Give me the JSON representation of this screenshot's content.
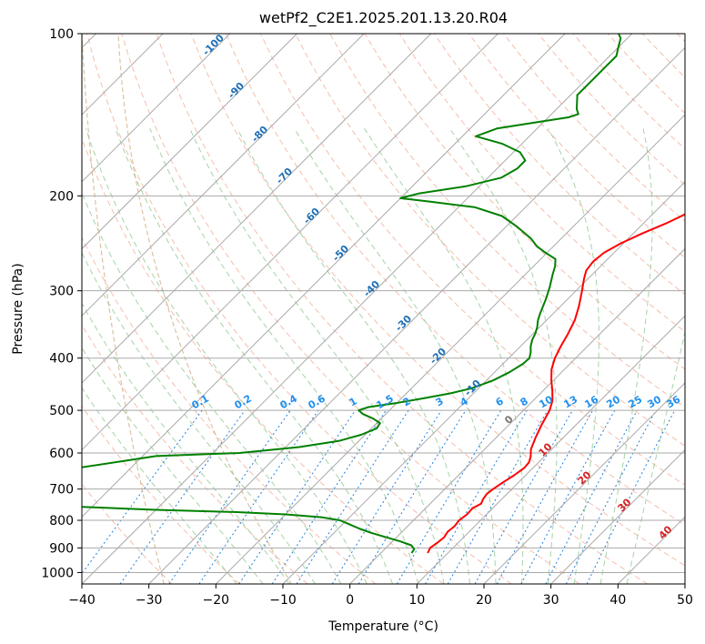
{
  "chart_data": {
    "type": "line",
    "title": "wetPf2_C2E1.2025.201.13.20.R04",
    "xlabel": "Temperature (°C)",
    "ylabel": "Pressure (hPa)",
    "xlim": [
      -40,
      50
    ],
    "ylim": [
      1050,
      100
    ],
    "y_scale": "log",
    "x_ticks": [
      -40,
      -30,
      -20,
      -10,
      0,
      10,
      20,
      30,
      40,
      50
    ],
    "y_ticks": [
      100,
      200,
      300,
      400,
      500,
      600,
      700,
      800,
      900,
      1000
    ],
    "grid": true,
    "series": [
      {
        "kind": "temperature",
        "color": "#ff0000",
        "points": [
          [
            920,
            7.0
          ],
          [
            900,
            6.6
          ],
          [
            880,
            6.9
          ],
          [
            860,
            7.1
          ],
          [
            840,
            6.8
          ],
          [
            820,
            7.0
          ],
          [
            800,
            6.8
          ],
          [
            780,
            7.1
          ],
          [
            760,
            7.0
          ],
          [
            745,
            7.6
          ],
          [
            730,
            7.2
          ],
          [
            715,
            7.0
          ],
          [
            700,
            7.2
          ],
          [
            680,
            7.7
          ],
          [
            660,
            8.3
          ],
          [
            640,
            8.7
          ],
          [
            625,
            8.6
          ],
          [
            610,
            8.0
          ],
          [
            590,
            6.9
          ],
          [
            560,
            5.8
          ],
          [
            530,
            4.8
          ],
          [
            500,
            3.9
          ],
          [
            480,
            2.9
          ],
          [
            460,
            1.4
          ],
          [
            440,
            -0.3
          ],
          [
            420,
            -1.9
          ],
          [
            400,
            -3.1
          ],
          [
            380,
            -4.0
          ],
          [
            360,
            -4.8
          ],
          [
            340,
            -5.8
          ],
          [
            320,
            -7.3
          ],
          [
            300,
            -9.1
          ],
          [
            285,
            -10.6
          ],
          [
            275,
            -11.5
          ],
          [
            265,
            -11.8
          ],
          [
            255,
            -11.5
          ],
          [
            245,
            -10.4
          ],
          [
            235,
            -8.7
          ],
          [
            225,
            -6.6
          ],
          [
            215,
            -4.9
          ],
          [
            205,
            -3.9
          ],
          [
            195,
            -3.5
          ],
          [
            185,
            -4.1
          ],
          [
            175,
            -5.0
          ],
          [
            165,
            -6.0
          ],
          [
            155,
            -7.3
          ],
          [
            145,
            -9.1
          ],
          [
            135,
            -11.4
          ],
          [
            125,
            -13.8
          ],
          [
            115,
            -16.3
          ],
          [
            108,
            -18.3
          ],
          [
            100,
            -20.9
          ]
        ]
      },
      {
        "kind": "dewpoint",
        "color": "#008000",
        "points": [
          [
            920,
            4.6
          ],
          [
            905,
            4.4
          ],
          [
            890,
            3.4
          ],
          [
            875,
            1.1
          ],
          [
            860,
            -1.6
          ],
          [
            845,
            -4.3
          ],
          [
            830,
            -6.7
          ],
          [
            815,
            -8.8
          ],
          [
            800,
            -11.0
          ],
          [
            790,
            -14.0
          ],
          [
            780,
            -20.0
          ],
          [
            772,
            -28.0
          ],
          [
            765,
            -40.0
          ],
          [
            755,
            -52.0
          ],
          [
            640,
            -58.0
          ],
          [
            608,
            -48.0
          ],
          [
            600,
            -36.0
          ],
          [
            585,
            -28.0
          ],
          [
            570,
            -23.0
          ],
          [
            555,
            -20.6
          ],
          [
            540,
            -19.2
          ],
          [
            528,
            -19.5
          ],
          [
            518,
            -21.2
          ],
          [
            508,
            -23.4
          ],
          [
            500,
            -24.6
          ],
          [
            493,
            -23.6
          ],
          [
            485,
            -20.2
          ],
          [
            475,
            -16.7
          ],
          [
            465,
            -13.4
          ],
          [
            455,
            -11.0
          ],
          [
            440,
            -9.0
          ],
          [
            425,
            -7.8
          ],
          [
            410,
            -7.0
          ],
          [
            400,
            -6.9
          ],
          [
            390,
            -7.6
          ],
          [
            380,
            -8.5
          ],
          [
            370,
            -9.2
          ],
          [
            360,
            -9.7
          ],
          [
            350,
            -10.4
          ],
          [
            340,
            -11.3
          ],
          [
            330,
            -12.0
          ],
          [
            310,
            -13.3
          ],
          [
            295,
            -14.5
          ],
          [
            280,
            -15.9
          ],
          [
            270,
            -16.8
          ],
          [
            262,
            -17.8
          ],
          [
            255,
            -20.2
          ],
          [
            248,
            -22.5
          ],
          [
            240,
            -24.5
          ],
          [
            228,
            -28.4
          ],
          [
            218,
            -32.2
          ],
          [
            210,
            -37.5
          ],
          [
            205,
            -45.0
          ],
          [
            202,
            -50.0
          ],
          [
            198,
            -48.0
          ],
          [
            192,
            -42.0
          ],
          [
            185,
            -38.0
          ],
          [
            178,
            -37.0
          ],
          [
            172,
            -37.0
          ],
          [
            166,
            -39.0
          ],
          [
            160,
            -43.0
          ],
          [
            155,
            -48.0
          ],
          [
            150,
            -46.0
          ],
          [
            146,
            -41.0
          ],
          [
            143,
            -37.0
          ],
          [
            141,
            -36.0
          ],
          [
            138,
            -37.0
          ],
          [
            130,
            -39.0
          ],
          [
            122,
            -39.0
          ],
          [
            116,
            -39.0
          ],
          [
            110,
            -39.0
          ],
          [
            106,
            -40.0
          ],
          [
            102,
            -41.0
          ],
          [
            100,
            -42.0
          ]
        ]
      }
    ],
    "dry_adiabat_labels": [
      "-100",
      "-90",
      "-80",
      "-70",
      "-60",
      "-50",
      "-40",
      "-30",
      "-20",
      "-10",
      "0",
      "10",
      "20",
      "30",
      "40"
    ],
    "mixing_ratio_labels": [
      "0.1",
      "0.2",
      "0.4",
      "0.6",
      "1",
      "1.5",
      "2",
      "3",
      "4",
      "6",
      "8",
      "10",
      "13",
      "16",
      "20",
      "25",
      "30",
      "36"
    ]
  },
  "colors": {
    "isotherm": "#a9a9a9",
    "isobar": "#a9a9a9",
    "dry_adiabat": "#f0a890",
    "moist_adiabat": "#90c890",
    "mixing_ratio": "#2080e0",
    "dry_label": "#1f6fb5",
    "moist_label": "#d42020",
    "mixing_label": "#1f8fef",
    "outer_curve": "#d2b48c"
  }
}
